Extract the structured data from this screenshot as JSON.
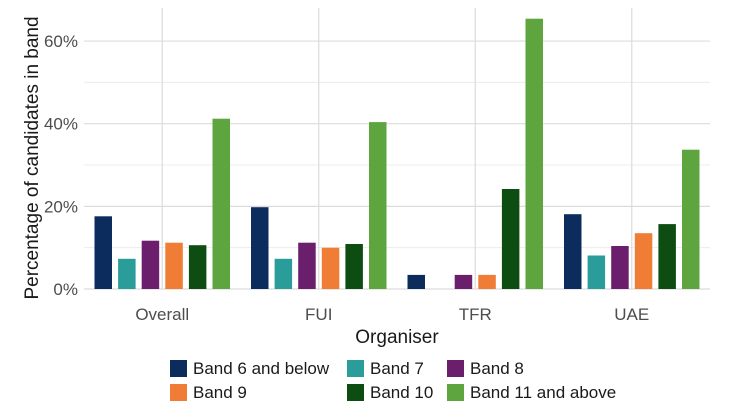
{
  "chart_data": {
    "type": "bar",
    "title": "",
    "xlabel": "Organiser",
    "ylabel": "Percentage of candidates in band",
    "categories": [
      "Overall",
      "FUI",
      "TFR",
      "UAE"
    ],
    "ylim": [
      0,
      0.68
    ],
    "yticks": [
      0,
      0.2,
      0.4,
      0.6
    ],
    "ytick_labels": [
      "0%",
      "20%",
      "40%",
      "60%"
    ],
    "grid": true,
    "legend_position": "bottom",
    "series": [
      {
        "name": "Band 6 and below",
        "color": "#0b2c5c",
        "values": [
          0.176,
          0.198,
          0.034,
          0.181
        ]
      },
      {
        "name": "Band 7",
        "color": "#2a9d9a",
        "values": [
          0.073,
          0.073,
          0,
          0.081
        ]
      },
      {
        "name": "Band 8",
        "color": "#6b1e6b",
        "values": [
          0.117,
          0.112,
          0.034,
          0.104
        ]
      },
      {
        "name": "Band 9",
        "color": "#ef7d35",
        "values": [
          0.112,
          0.1,
          0.034,
          0.135
        ]
      },
      {
        "name": "Band 10",
        "color": "#0d4d12",
        "values": [
          0.106,
          0.109,
          0.242,
          0.157
        ]
      },
      {
        "name": "Band 11 and above",
        "color": "#5ea53f",
        "values": [
          0.412,
          0.404,
          0.654,
          0.337
        ]
      }
    ]
  }
}
